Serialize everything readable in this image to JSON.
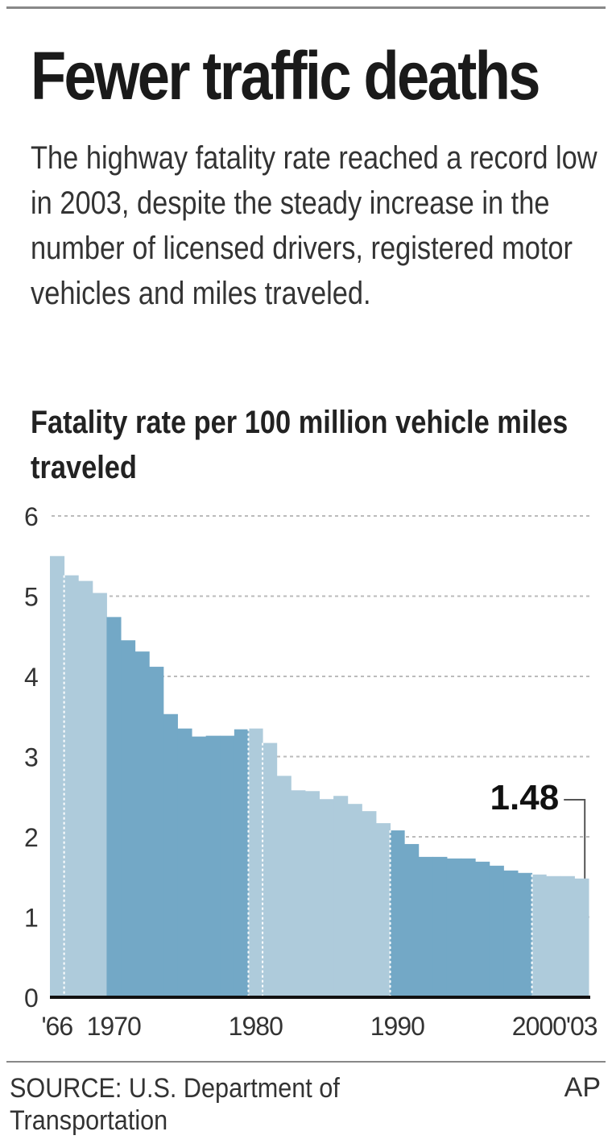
{
  "title": "Fewer traffic deaths",
  "subtitle": "The highway fatality rate reached a record low in 2003, despite the steady increase in the number of licensed drivers, registered motor vehicles and miles traveled.",
  "source": "SOURCE: U.S. Department of Transportation",
  "credit": "AP",
  "chart_data": {
    "type": "bar",
    "title": "",
    "ylabel": "Fatality rate per 100 million vehicle miles traveled",
    "xlabel": "",
    "ylim": [
      0,
      6
    ],
    "yticks": [
      0,
      1,
      2,
      3,
      4,
      5,
      6
    ],
    "grid": true,
    "x": [
      1966,
      1967,
      1968,
      1969,
      1970,
      1971,
      1972,
      1973,
      1974,
      1975,
      1976,
      1977,
      1978,
      1979,
      1980,
      1981,
      1982,
      1983,
      1984,
      1985,
      1986,
      1987,
      1988,
      1989,
      1990,
      1991,
      1992,
      1993,
      1994,
      1995,
      1996,
      1997,
      1998,
      1999,
      2000,
      2001,
      2002,
      2003
    ],
    "values": [
      5.5,
      5.26,
      5.19,
      5.04,
      4.74,
      4.45,
      4.31,
      4.12,
      3.53,
      3.35,
      3.25,
      3.26,
      3.26,
      3.34,
      3.35,
      3.17,
      2.76,
      2.58,
      2.57,
      2.47,
      2.51,
      2.41,
      2.32,
      2.17,
      2.08,
      1.91,
      1.75,
      1.75,
      1.73,
      1.73,
      1.69,
      1.64,
      1.58,
      1.55,
      1.53,
      1.51,
      1.51,
      1.48
    ],
    "xtick_labels": [
      {
        "year": 1966,
        "label": "'66"
      },
      {
        "year": 1970,
        "label": "1970"
      },
      {
        "year": 1980,
        "label": "1980"
      },
      {
        "year": 1990,
        "label": "1990"
      },
      {
        "year": 2000,
        "label": "2000"
      },
      {
        "year": 2003,
        "label": "'03"
      }
    ],
    "annotation": {
      "year": 2003,
      "label": "1.48"
    },
    "colors": {
      "dark": "#73a8c6",
      "light": "#aecbdb",
      "grid": "#bbbbbb",
      "axis": "#111111"
    }
  }
}
